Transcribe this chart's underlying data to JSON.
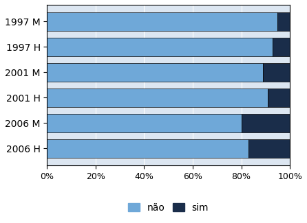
{
  "categories": [
    "2006 H",
    "2006 M",
    "2001 H",
    "2001 M",
    "1997 H",
    "1997 M"
  ],
  "nao_values": [
    83,
    80,
    91,
    89,
    93,
    95
  ],
  "sim_values": [
    17,
    20,
    9,
    11,
    7,
    5
  ],
  "color_nao": "#6fa8d8",
  "color_sim": "#1a2d4a",
  "xlabel_ticks": [
    "0%",
    "20%",
    "40%",
    "60%",
    "80%",
    "100%"
  ],
  "xlabel_values": [
    0,
    20,
    40,
    60,
    80,
    100
  ],
  "legend_labels": [
    "não",
    "sim"
  ],
  "background_color": "#ffffff",
  "plot_bg_color": "#dce6f1",
  "grid_color": "#ffffff",
  "bar_edge_color": "#000000",
  "figsize": [
    4.46,
    3.25
  ],
  "dpi": 100,
  "bar_height": 0.75
}
